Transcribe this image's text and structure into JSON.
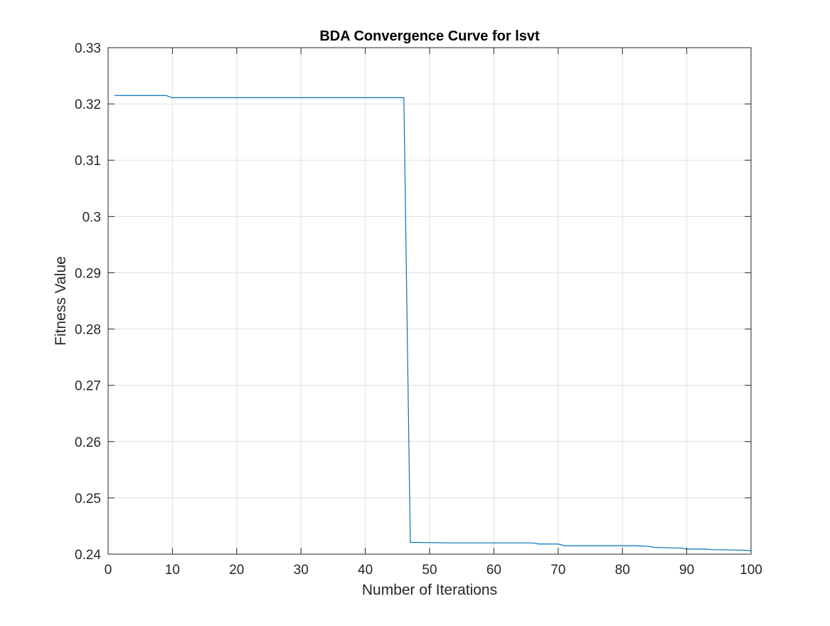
{
  "chart_data": {
    "type": "line",
    "title": "BDA Convergence Curve for lsvt",
    "xlabel": "Number of Iterations",
    "ylabel": "Fitness Value",
    "xlim": [
      0,
      100
    ],
    "ylim": [
      0.24,
      0.33
    ],
    "xticks": [
      0,
      10,
      20,
      30,
      40,
      50,
      60,
      70,
      80,
      90,
      100
    ],
    "xtick_labels": [
      "0",
      "10",
      "20",
      "30",
      "40",
      "50",
      "60",
      "70",
      "80",
      "90",
      "100"
    ],
    "yticks": [
      0.24,
      0.25,
      0.26,
      0.27,
      0.28,
      0.29,
      0.3,
      0.31,
      0.32,
      0.33
    ],
    "ytick_labels": [
      "0.24",
      "0.25",
      "0.26",
      "0.27",
      "0.28",
      "0.29",
      "0.3",
      "0.31",
      "0.32",
      "0.33"
    ],
    "grid": true,
    "series": [
      {
        "color": "#0072BD",
        "x": [
          1,
          9,
          10,
          46,
          47,
          53,
          66,
          67,
          70,
          71,
          82,
          84,
          85,
          88,
          89,
          90,
          93,
          94,
          99,
          100
        ],
        "y": [
          0.3215,
          0.3215,
          0.3211,
          0.3211,
          0.2421,
          0.242,
          0.242,
          0.2418,
          0.2418,
          0.2415,
          0.2415,
          0.2414,
          0.2412,
          0.2411,
          0.2411,
          0.2409,
          0.2409,
          0.2408,
          0.2407,
          0.2406
        ]
      }
    ]
  }
}
